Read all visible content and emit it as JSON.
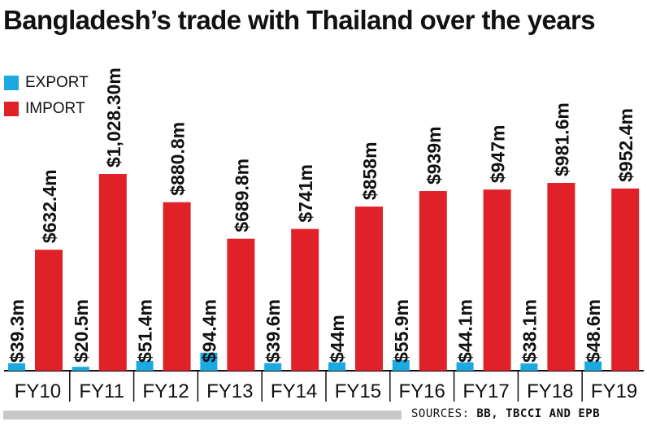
{
  "chart_data": {
    "type": "bar",
    "title": "Bangladesh’s trade with Thailand over the years",
    "categories": [
      "FY10",
      "FY11",
      "FY12",
      "FY13",
      "FY14",
      "FY15",
      "FY16",
      "FY17",
      "FY18",
      "FY19"
    ],
    "series": [
      {
        "name": "EXPORT",
        "color": "#1ba9e1",
        "values": [
          39.3,
          20.5,
          51.4,
          94.4,
          39.6,
          44,
          55.9,
          44.1,
          38.1,
          48.6
        ],
        "labels": [
          "$39.3m",
          "$20.5m",
          "$51.4m",
          "$94.4m",
          "$39.6m",
          "$44m",
          "$55.9m",
          "$44.1m",
          "$38.1m",
          "$48.6m"
        ]
      },
      {
        "name": "IMPORT",
        "color": "#e02127",
        "values": [
          632.4,
          1028.3,
          880.8,
          689.8,
          741,
          858,
          939,
          947,
          981.6,
          952.4
        ],
        "labels": [
          "$632.4m",
          "$1,028.30m",
          "$880.8m",
          "$689.8m",
          "$741m",
          "$858m",
          "$939m",
          "$947m",
          "$981.6m",
          "$952.4m"
        ]
      }
    ],
    "ylim": [
      0,
      1028.3
    ],
    "grid": false,
    "legend": "top-left",
    "source_prefix": "SOURCES: ",
    "source_names": "BB, TBCCI AND EPB"
  }
}
